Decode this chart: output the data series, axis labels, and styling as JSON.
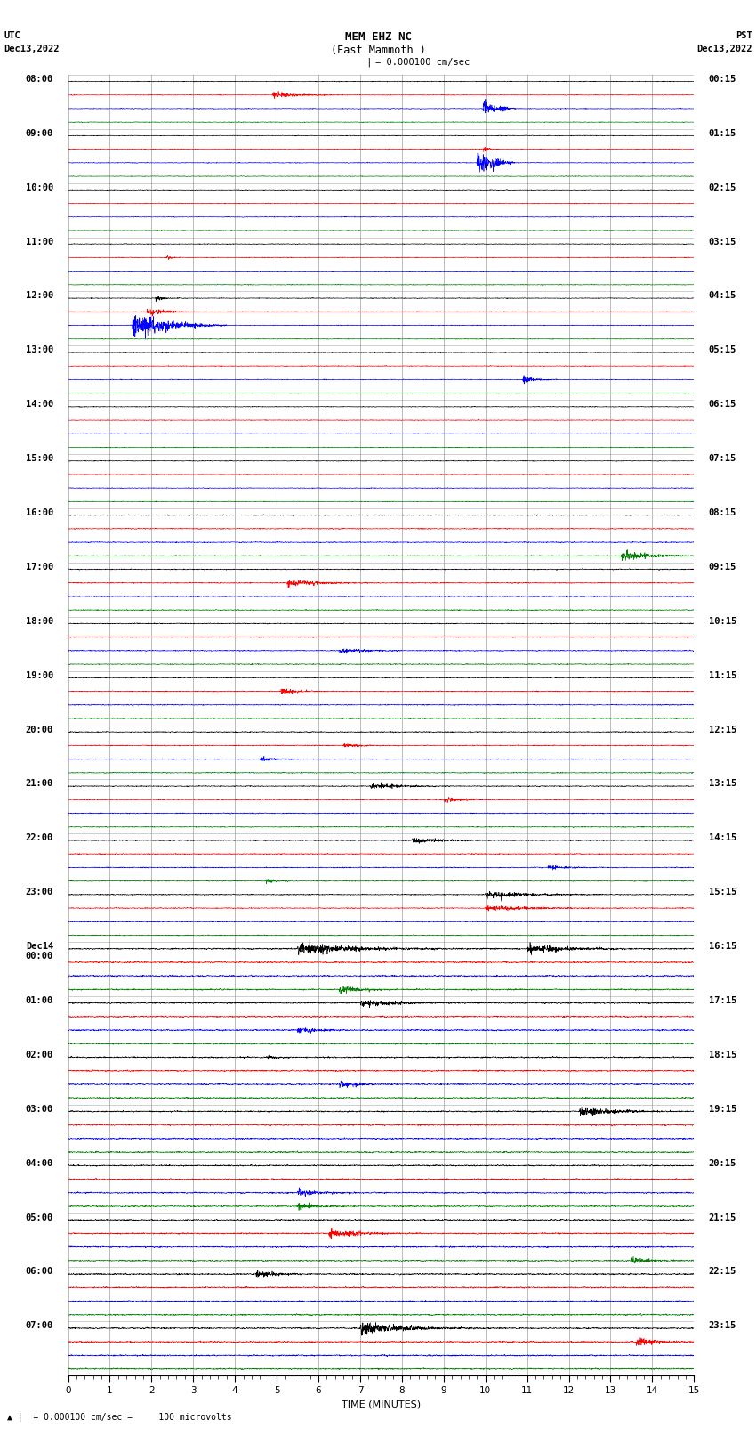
{
  "title_line1": "MEM EHZ NC",
  "title_line2": "(East Mammoth )",
  "scale_label": "= 0.000100 cm/sec",
  "left_label_top": "UTC",
  "left_label_date": "Dec13,2022",
  "right_label_top": "PST",
  "right_label_date": "Dec13,2022",
  "bottom_label": "TIME (MINUTES)",
  "footer_label": "= 0.000100 cm/sec =     100 microvolts",
  "left_times_major": [
    "08:00",
    "09:00",
    "10:00",
    "11:00",
    "12:00",
    "13:00",
    "14:00",
    "15:00",
    "16:00",
    "17:00",
    "18:00",
    "19:00",
    "20:00",
    "21:00",
    "22:00",
    "23:00",
    "Dec14\n00:00",
    "01:00",
    "02:00",
    "03:00",
    "04:00",
    "05:00",
    "06:00",
    "07:00"
  ],
  "right_times_major": [
    "00:15",
    "01:15",
    "02:15",
    "03:15",
    "04:15",
    "05:15",
    "06:15",
    "07:15",
    "08:15",
    "09:15",
    "10:15",
    "11:15",
    "12:15",
    "13:15",
    "14:15",
    "15:15",
    "16:15",
    "17:15",
    "18:15",
    "19:15",
    "20:15",
    "21:15",
    "22:15",
    "23:15"
  ],
  "n_hours": 24,
  "colors": [
    "black",
    "red",
    "blue",
    "green"
  ],
  "x_min": 0,
  "x_max": 15,
  "x_ticks_major": [
    0,
    1,
    2,
    3,
    4,
    5,
    6,
    7,
    8,
    9,
    10,
    11,
    12,
    13,
    14,
    15
  ],
  "noise_amp": 0.28,
  "bg_color": "white",
  "grid_color": "#777777",
  "tick_fontsize": 7.5,
  "title_fontsize": 9,
  "label_fontsize": 8
}
